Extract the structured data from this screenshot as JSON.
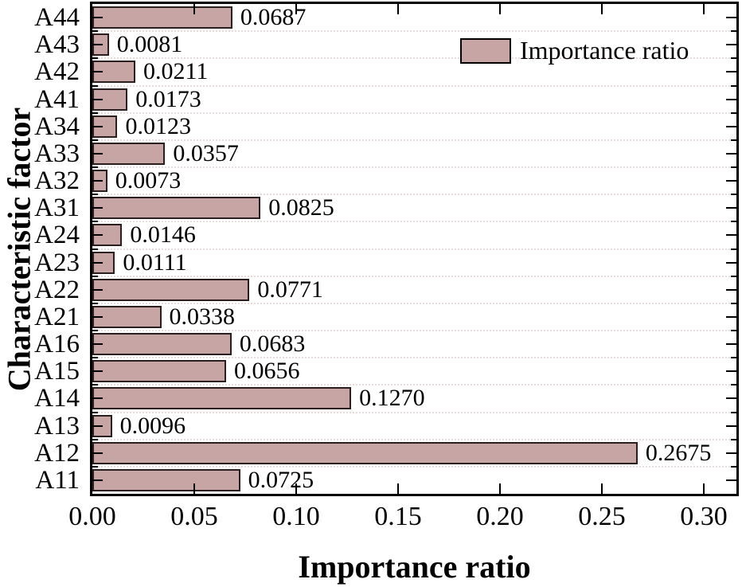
{
  "chart_data": {
    "type": "bar",
    "orientation": "horizontal",
    "title": "",
    "xlabel": "Importance ratio",
    "ylabel": "Characteristic factor",
    "legend": {
      "label": "Importance ratio",
      "position": "top-right-inside"
    },
    "categories_top_to_bottom": [
      "A44",
      "A43",
      "A42",
      "A41",
      "A34",
      "A33",
      "A32",
      "A31",
      "A24",
      "A23",
      "A22",
      "A21",
      "A16",
      "A15",
      "A14",
      "A13",
      "A12",
      "A11"
    ],
    "series": [
      {
        "name": "Importance ratio",
        "values_top_to_bottom": [
          0.0687,
          0.0081,
          0.0211,
          0.0173,
          0.0123,
          0.0357,
          0.0073,
          0.0825,
          0.0146,
          0.0111,
          0.0771,
          0.0338,
          0.0683,
          0.0656,
          0.127,
          0.0096,
          0.2675,
          0.0725
        ],
        "value_labels_top_to_bottom": [
          "0.0687",
          "0.0081",
          "0.0211",
          "0.0173",
          "0.0123",
          "0.0357",
          "0.0073",
          "0.0825",
          "0.0146",
          "0.0111",
          "0.0771",
          "0.0338",
          "0.0683",
          "0.0656",
          "0.1270",
          "0.0096",
          "0.2675",
          "0.0725"
        ]
      }
    ],
    "xlim": [
      0,
      0.316
    ],
    "x_ticks": [
      0,
      0.05,
      0.1,
      0.15,
      0.2,
      0.25,
      0.3
    ],
    "x_tick_labels": [
      "0.00",
      "0.05",
      "0.10",
      "0.15",
      "0.20",
      "0.25",
      "0.30"
    ],
    "grid": "horizontal dotted lines at category boundaries",
    "ticks": "inward on all four spines; y-axis has major ticks at category centers and minor ticks at boundaries",
    "colors": {
      "bar_fill": "#c8a5a5",
      "bar_border": "#2b1e1e",
      "axis": "#000000",
      "gridline": "#e6dada"
    }
  }
}
